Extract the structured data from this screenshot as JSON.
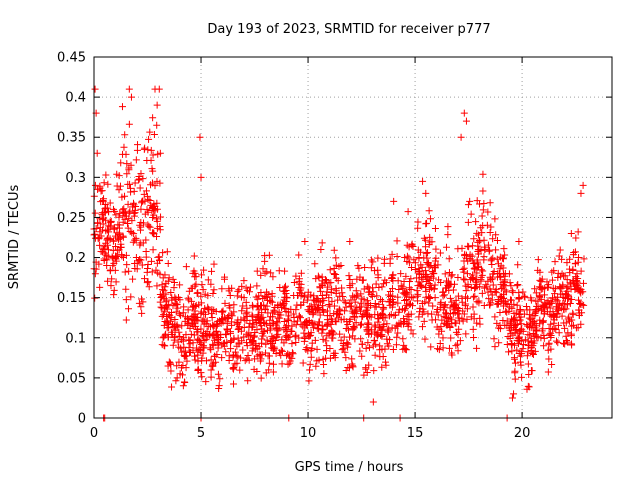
{
  "chart_data": {
    "type": "scatter",
    "title": "Day 193 of 2023, SRMTID for receiver p777",
    "xlabel": "GPS time / hours",
    "ylabel": "SRMTID / TECUs",
    "xlim": [
      0,
      24.2
    ],
    "ylim": [
      0,
      0.45
    ],
    "xticks": [
      0,
      5,
      10,
      15,
      20
    ],
    "xtick_labels": [
      "0",
      "5",
      "10",
      "15",
      "20"
    ],
    "yticks": [
      0,
      0.05,
      0.1,
      0.15,
      0.2,
      0.25,
      0.3,
      0.35,
      0.4,
      0.45
    ],
    "ytick_labels": [
      "0",
      "0.05",
      "0.1",
      "0.15",
      "0.2",
      "0.25",
      "0.3",
      "0.35",
      "0.4",
      "0.45"
    ],
    "grid": true,
    "marker": "+",
    "series": [
      {
        "name": "SRMTID",
        "color": "#ff0000",
        "x_range": [
          0.0,
          22.9
        ],
        "envelope_hours": [
          0,
          0.5,
          1,
          1.5,
          2,
          2.5,
          3,
          3.3,
          3.6,
          4,
          4.5,
          5,
          5.5,
          6,
          7,
          8,
          9,
          10,
          11,
          12,
          13,
          14,
          14.5,
          15,
          15.5,
          16,
          16.5,
          17,
          17.5,
          18,
          18.5,
          19,
          19.5,
          20,
          20.5,
          21,
          21.5,
          22,
          22.5,
          22.9
        ],
        "envelope_center": [
          0.23,
          0.25,
          0.21,
          0.27,
          0.24,
          0.26,
          0.23,
          0.14,
          0.11,
          0.1,
          0.11,
          0.13,
          0.11,
          0.11,
          0.11,
          0.12,
          0.12,
          0.13,
          0.13,
          0.13,
          0.13,
          0.14,
          0.15,
          0.17,
          0.18,
          0.16,
          0.13,
          0.14,
          0.17,
          0.19,
          0.19,
          0.15,
          0.13,
          0.1,
          0.12,
          0.13,
          0.14,
          0.15,
          0.16,
          0.15
        ],
        "envelope_spread": [
          0.06,
          0.04,
          0.05,
          0.07,
          0.06,
          0.07,
          0.08,
          0.04,
          0.04,
          0.04,
          0.04,
          0.05,
          0.04,
          0.04,
          0.04,
          0.04,
          0.04,
          0.04,
          0.04,
          0.04,
          0.04,
          0.04,
          0.05,
          0.05,
          0.05,
          0.05,
          0.04,
          0.04,
          0.05,
          0.06,
          0.05,
          0.04,
          0.04,
          0.04,
          0.04,
          0.04,
          0.04,
          0.04,
          0.04,
          0.05
        ],
        "spikes": [
          [
            0.05,
            0.41
          ],
          [
            0.1,
            0.38
          ],
          [
            0.15,
            0.33
          ],
          [
            1.65,
            0.41
          ],
          [
            1.75,
            0.4
          ],
          [
            2.85,
            0.41
          ],
          [
            2.95,
            0.39
          ],
          [
            3.05,
            0.41
          ],
          [
            3.1,
            0.33
          ],
          [
            4.95,
            0.35
          ],
          [
            5.0,
            0.3
          ],
          [
            9.85,
            0.22
          ],
          [
            10.6,
            0.21
          ],
          [
            11.95,
            0.22
          ],
          [
            14.0,
            0.27
          ],
          [
            15.35,
            0.295
          ],
          [
            15.5,
            0.28
          ],
          [
            17.15,
            0.35
          ],
          [
            17.3,
            0.38
          ],
          [
            17.4,
            0.37
          ],
          [
            17.55,
            0.27
          ],
          [
            19.85,
            0.22
          ],
          [
            22.3,
            0.23
          ],
          [
            22.75,
            0.28
          ],
          [
            22.85,
            0.29
          ]
        ],
        "zero_markers": [
          0.45,
          0.5,
          5.0,
          9.1,
          12.6,
          14.3,
          19.3
        ],
        "outliers": [
          [
            13.05,
            0.02
          ],
          [
            19.55,
            0.025
          ],
          [
            19.6,
            0.03
          ]
        ]
      }
    ]
  }
}
